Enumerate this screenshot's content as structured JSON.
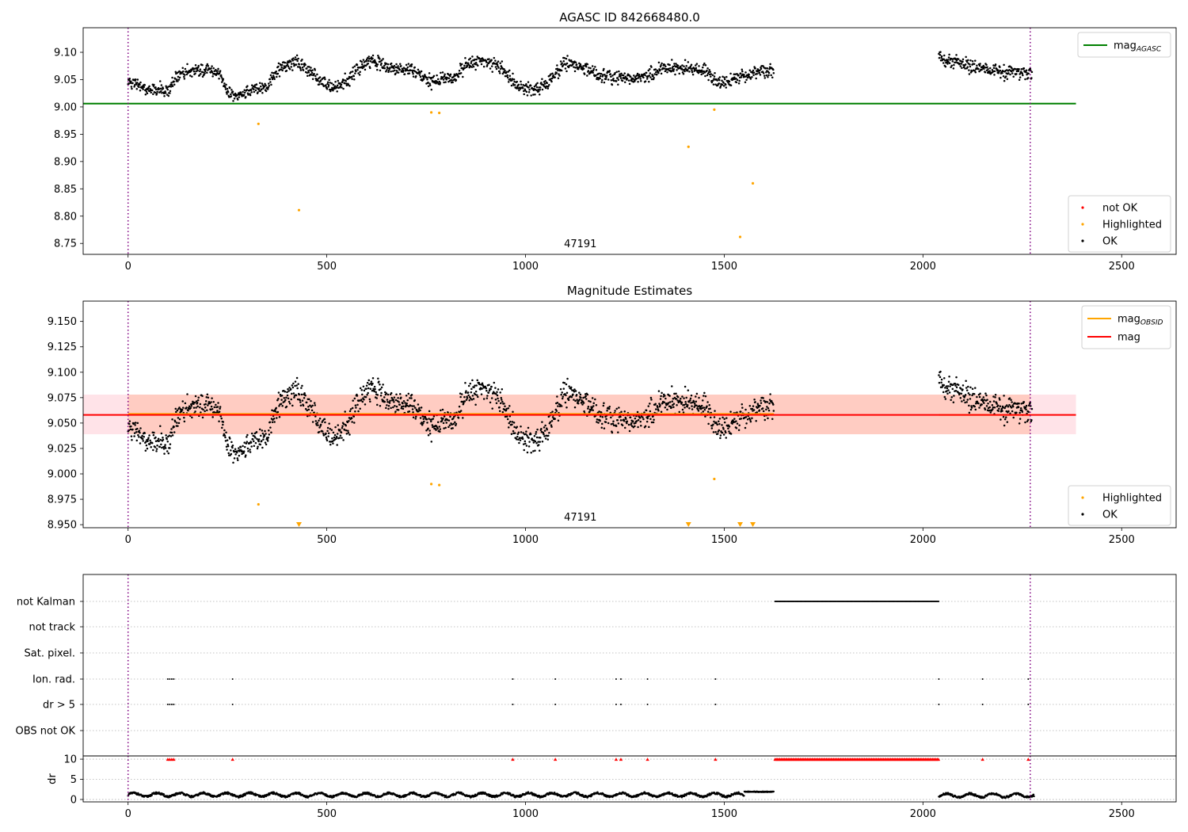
{
  "figure": {
    "title": "AGASC ID 842668480.0"
  },
  "chart_data": [
    {
      "type": "scatter",
      "title": "AGASC ID 842668480.0",
      "annotation": "47191",
      "xlim": [
        -113,
        2637
      ],
      "ylim": [
        8.73,
        9.145
      ],
      "xticks": [
        0,
        500,
        1000,
        1500,
        2000,
        2500
      ],
      "yticks": [
        8.75,
        8.8,
        8.85,
        8.9,
        8.95,
        9.0,
        9.05,
        9.1
      ],
      "ytick_labels": [
        "8.75",
        "8.80",
        "8.85",
        "8.90",
        "8.95",
        "9.00",
        "9.05",
        "9.10"
      ],
      "vlines": [
        0,
        2270
      ],
      "legend_lines": [
        {
          "label": "mag",
          "sub": "AGASC",
          "color": "#008000"
        }
      ],
      "legend_points": [
        {
          "label": "not OK",
          "color": "#ff0000"
        },
        {
          "label": "Highlighted",
          "color": "#ffa500"
        },
        {
          "label": "OK",
          "color": "#000000"
        }
      ],
      "hline": {
        "value": 9.006,
        "x_range": [
          -113,
          2385
        ],
        "color": "#008000"
      },
      "highlighted": {
        "x": [
          328,
          430,
          763,
          783,
          1410,
          1475,
          1540,
          1572
        ],
        "y": [
          8.969,
          8.811,
          8.99,
          8.989,
          8.927,
          8.995,
          8.762,
          8.86
        ]
      },
      "ok_segments": [
        {
          "x": [
            0,
            25,
            50,
            75,
            100,
            125,
            150,
            175,
            200,
            225,
            250,
            275,
            300,
            325,
            350,
            375,
            400,
            425,
            450,
            475,
            500,
            525,
            550,
            575,
            600,
            625,
            650,
            675,
            700,
            725,
            750,
            775,
            800,
            825,
            850,
            875,
            900,
            925,
            950,
            975,
            1000,
            1025,
            1050,
            1075,
            1100,
            1125,
            1150,
            1175,
            1200,
            1225,
            1250,
            1275,
            1300,
            1325,
            1350,
            1375,
            1400,
            1425,
            1450,
            1475,
            1500,
            1525,
            1550,
            1575,
            1600,
            1625
          ],
          "y": [
            9.045,
            9.04,
            9.03,
            9.033,
            9.027,
            9.058,
            9.067,
            9.066,
            9.068,
            9.064,
            9.027,
            9.022,
            9.027,
            9.033,
            9.04,
            9.067,
            9.075,
            9.08,
            9.068,
            9.055,
            9.04,
            9.037,
            9.047,
            9.068,
            9.083,
            9.082,
            9.073,
            9.068,
            9.07,
            9.064,
            9.05,
            9.046,
            9.053,
            9.055,
            9.078,
            9.083,
            9.083,
            9.078,
            9.065,
            9.04,
            9.034,
            9.03,
            9.04,
            9.062,
            9.081,
            9.078,
            9.072,
            9.063,
            9.057,
            9.055,
            9.053,
            9.05,
            9.054,
            9.063,
            9.07,
            9.071,
            9.071,
            9.07,
            9.07,
            9.047,
            9.045,
            9.052,
            9.055,
            9.064,
            9.067,
            9.062
          ]
        },
        {
          "x": [
            2040,
            2060,
            2080,
            2100,
            2120,
            2140,
            2160,
            2180,
            2200,
            2220,
            2240,
            2260,
            2275
          ],
          "y": [
            9.089,
            9.086,
            9.083,
            9.078,
            9.074,
            9.072,
            9.07,
            9.067,
            9.064,
            9.062,
            9.061,
            9.062,
            9.064
          ]
        }
      ]
    },
    {
      "type": "scatter",
      "title": "Magnitude Estimates",
      "annotation": "47191",
      "xlim": [
        -113,
        2637
      ],
      "ylim": [
        8.947,
        9.17
      ],
      "xticks": [
        0,
        500,
        1000,
        1500,
        2000,
        2500
      ],
      "yticks": [
        8.95,
        8.975,
        9.0,
        9.025,
        9.05,
        9.075,
        9.1,
        9.125,
        9.15
      ],
      "ytick_labels": [
        "8.950",
        "8.975",
        "9.000",
        "9.025",
        "9.050",
        "9.075",
        "9.100",
        "9.125",
        "9.150"
      ],
      "vlines": [
        0,
        2270
      ],
      "legend_lines": [
        {
          "label": "mag",
          "sub": "OBSID",
          "color": "#ffa500"
        },
        {
          "label": "mag",
          "sub": "",
          "color": "#ff0000"
        }
      ],
      "legend_points": [
        {
          "label": "Highlighted",
          "color": "#ffa500"
        },
        {
          "label": "OK",
          "color": "#000000"
        }
      ],
      "mag_line": {
        "value": 9.058,
        "x_range": [
          -113,
          2385
        ],
        "color": "#ff0000"
      },
      "mag_obsid_segments": [
        {
          "x_range": [
            0,
            1625
          ],
          "value": 9.059
        },
        {
          "x_range": [
            2040,
            2270
          ],
          "value": 9.058
        }
      ],
      "band_pink": {
        "lo": 9.039,
        "hi": 9.078,
        "x_range": [
          -113,
          2385
        ]
      },
      "band_orange": {
        "lo": 9.039,
        "hi": 9.078,
        "x_range": [
          0,
          2270
        ]
      },
      "highlighted": {
        "x": [
          328,
          763,
          783,
          1475
        ],
        "y": [
          8.97,
          8.99,
          8.989,
          8.995
        ]
      },
      "below_range_markers": {
        "x": [
          430,
          1410,
          1540,
          1572
        ]
      },
      "ok_segments": [
        {
          "x": [
            0,
            25,
            50,
            75,
            100,
            125,
            150,
            175,
            200,
            225,
            250,
            275,
            300,
            325,
            350,
            375,
            400,
            425,
            450,
            475,
            500,
            525,
            550,
            575,
            600,
            625,
            650,
            675,
            700,
            725,
            750,
            775,
            800,
            825,
            850,
            875,
            900,
            925,
            950,
            975,
            1000,
            1025,
            1050,
            1075,
            1100,
            1125,
            1150,
            1175,
            1200,
            1225,
            1250,
            1275,
            1300,
            1325,
            1350,
            1375,
            1400,
            1425,
            1450,
            1475,
            1500,
            1525,
            1550,
            1575,
            1600,
            1625
          ],
          "y": [
            9.045,
            9.04,
            9.03,
            9.033,
            9.027,
            9.058,
            9.067,
            9.066,
            9.068,
            9.064,
            9.027,
            9.022,
            9.027,
            9.033,
            9.04,
            9.067,
            9.075,
            9.08,
            9.068,
            9.055,
            9.04,
            9.037,
            9.047,
            9.068,
            9.083,
            9.082,
            9.073,
            9.068,
            9.07,
            9.064,
            9.05,
            9.046,
            9.053,
            9.055,
            9.078,
            9.083,
            9.083,
            9.078,
            9.065,
            9.04,
            9.034,
            9.03,
            9.04,
            9.062,
            9.081,
            9.078,
            9.072,
            9.063,
            9.057,
            9.055,
            9.053,
            9.05,
            9.054,
            9.063,
            9.07,
            9.071,
            9.071,
            9.07,
            9.07,
            9.047,
            9.045,
            9.052,
            9.055,
            9.064,
            9.067,
            9.062
          ]
        },
        {
          "x": [
            2040,
            2060,
            2080,
            2100,
            2120,
            2140,
            2160,
            2180,
            2200,
            2220,
            2240,
            2260,
            2275
          ],
          "y": [
            9.089,
            9.086,
            9.083,
            9.078,
            9.074,
            9.072,
            9.07,
            9.067,
            9.064,
            9.062,
            9.061,
            9.062,
            9.064
          ]
        }
      ]
    },
    {
      "type": "scatter",
      "title": "",
      "xlim": [
        -113,
        2637
      ],
      "xticks": [
        0,
        500,
        1000,
        1500,
        2000,
        2500
      ],
      "vlines": [
        0,
        2270
      ],
      "flag_rows": [
        "not Kalman",
        "not track",
        "Sat. pixel.",
        "Ion. rad.",
        "dr > 5",
        "OBS not OK"
      ],
      "not_kalman": {
        "x_range": [
          1628,
          2040
        ]
      },
      "ion_rad": {
        "x": [
          100,
          105,
          110,
          115,
          263,
          968,
          1075,
          1228,
          1240,
          1307,
          1478,
          2040,
          2150,
          2265
        ]
      },
      "dr_gt_5": {
        "x": [
          100,
          105,
          110,
          115,
          263,
          968,
          1075,
          1228,
          1240,
          1307,
          1478,
          2040,
          2150,
          2265
        ]
      },
      "dr": {
        "ylabel": "dr",
        "ylim": [
          -0.6,
          10.8
        ],
        "yticks": [
          0,
          5,
          10
        ],
        "ytick_labels": [
          "0",
          "5",
          "10"
        ],
        "clip_value": 10,
        "clipped_x": [
          100,
          105,
          110,
          115,
          263,
          968,
          1075,
          1228,
          1240,
          1307,
          1478,
          2150,
          2265
        ],
        "clipped_range": [
          1628,
          2040
        ],
        "segments": [
          {
            "x_range": [
              0,
              1625
            ],
            "base": 1.15
          },
          {
            "x_range": [
              2040,
              2280
            ],
            "base": 1.0
          }
        ],
        "tail": {
          "x_range": [
            1550,
            1625
          ],
          "value": 1.9
        }
      }
    }
  ]
}
